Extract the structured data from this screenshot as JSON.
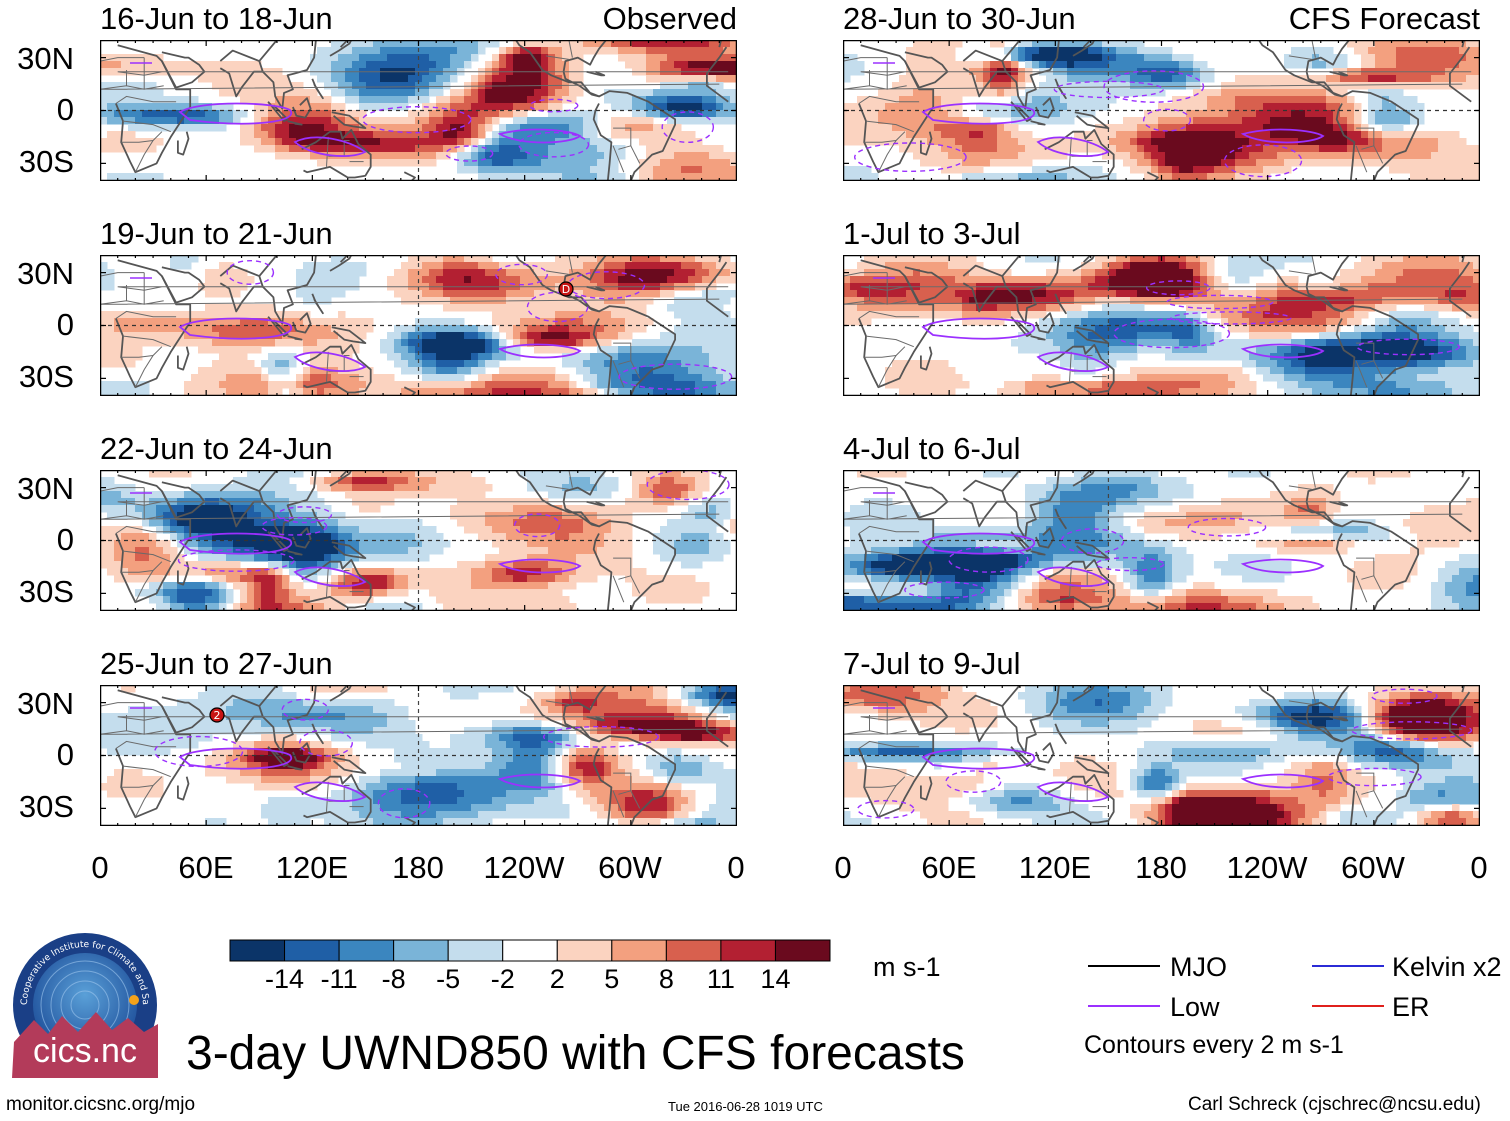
{
  "columns": {
    "observed_label": "Observed",
    "forecast_label": "CFS Forecast"
  },
  "panels": [
    {
      "id": "obs-1",
      "title": "16-Jun to 18-Jun",
      "seed": 1
    },
    {
      "id": "obs-2",
      "title": "19-Jun to 21-Jun",
      "seed": 2
    },
    {
      "id": "obs-3",
      "title": "22-Jun to 24-Jun",
      "seed": 3
    },
    {
      "id": "obs-4",
      "title": "25-Jun to 27-Jun",
      "seed": 4
    },
    {
      "id": "fc-1",
      "title": "28-Jun to 30-Jun",
      "seed": 5
    },
    {
      "id": "fc-2",
      "title": "1-Jul to 3-Jul",
      "seed": 6
    },
    {
      "id": "fc-3",
      "title": "4-Jul to 6-Jul",
      "seed": 7
    },
    {
      "id": "fc-4",
      "title": "7-Jul to 9-Jul",
      "seed": 8
    }
  ],
  "lat_labels": [
    "30N",
    "0",
    "30S"
  ],
  "lon_labels": [
    "0",
    "60E",
    "120E",
    "180",
    "120W",
    "60W",
    "0"
  ],
  "markers": [
    {
      "panel": "obs-2",
      "label": "D"
    },
    {
      "panel": "obs-4",
      "label": "2"
    }
  ],
  "colorbar": {
    "units": "m s-1",
    "ticks": [
      "-14",
      "-11",
      "-8",
      "-5",
      "-2",
      "2",
      "5",
      "8",
      "11",
      "14"
    ],
    "colors": [
      "#0b3468",
      "#1f5fa6",
      "#3b86bf",
      "#7ab4d8",
      "#c4dded",
      "#ffffff",
      "#fbd3c0",
      "#f3a07f",
      "#d8604e",
      "#b32032",
      "#6a0a1e"
    ]
  },
  "legend": {
    "items": [
      {
        "label": "MJO",
        "color": "#000000"
      },
      {
        "label": "Kelvin x2",
        "color": "#2b2bd6"
      },
      {
        "label": "Low",
        "color": "#9b30ff"
      },
      {
        "label": "ER",
        "color": "#e0201c"
      }
    ],
    "note": "Contours every 2 m s-1"
  },
  "title": "3-day UWND850 with CFS forecasts",
  "logo_text": "cics.nc",
  "logo_ring_text": "Cooperative Institute for Climate and Satellites",
  "footer": {
    "url": "monitor.cicsnc.org/mjo",
    "timestamp": "Tue 2016-06-28 1019 UTC",
    "author": "Carl Schreck (cjschrec@ncsu.edu)"
  }
}
